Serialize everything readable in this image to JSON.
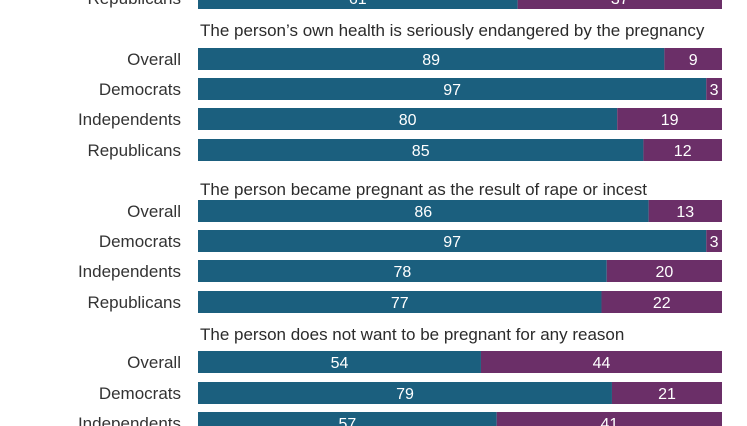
{
  "colors": {
    "yes": "#1b5f7e",
    "no": "#6b2f68"
  },
  "chart_data": {
    "type": "bar",
    "orientation": "horizontal",
    "stacked": true,
    "xlim": [
      0,
      100
    ],
    "grid": false,
    "legend": "none",
    "groups": [
      {
        "title": "",
        "rows": [
          {
            "label": "Republicans",
            "values": [
              61,
              37
            ]
          }
        ]
      },
      {
        "title": "The person’s own health is seriously endangered by the pregnancy",
        "rows": [
          {
            "label": "Overall",
            "values": [
              89,
              9
            ]
          },
          {
            "label": "Democrats",
            "values": [
              97,
              3
            ]
          },
          {
            "label": "Independents",
            "values": [
              80,
              19
            ]
          },
          {
            "label": "Republicans",
            "values": [
              85,
              12
            ]
          }
        ]
      },
      {
        "title": "The person became pregnant as the result of rape or incest",
        "rows": [
          {
            "label": "Overall",
            "values": [
              86,
              13
            ]
          },
          {
            "label": "Democrats",
            "values": [
              97,
              3
            ]
          },
          {
            "label": "Independents",
            "values": [
              78,
              20
            ]
          },
          {
            "label": "Republicans",
            "values": [
              77,
              22
            ]
          }
        ]
      },
      {
        "title": "The person does not want to be pregnant for any reason",
        "rows": [
          {
            "label": "Overall",
            "values": [
              54,
              44
            ]
          },
          {
            "label": "Democrats",
            "values": [
              79,
              21
            ]
          },
          {
            "label": "Independents",
            "values": [
              57,
              41
            ]
          }
        ]
      }
    ]
  }
}
